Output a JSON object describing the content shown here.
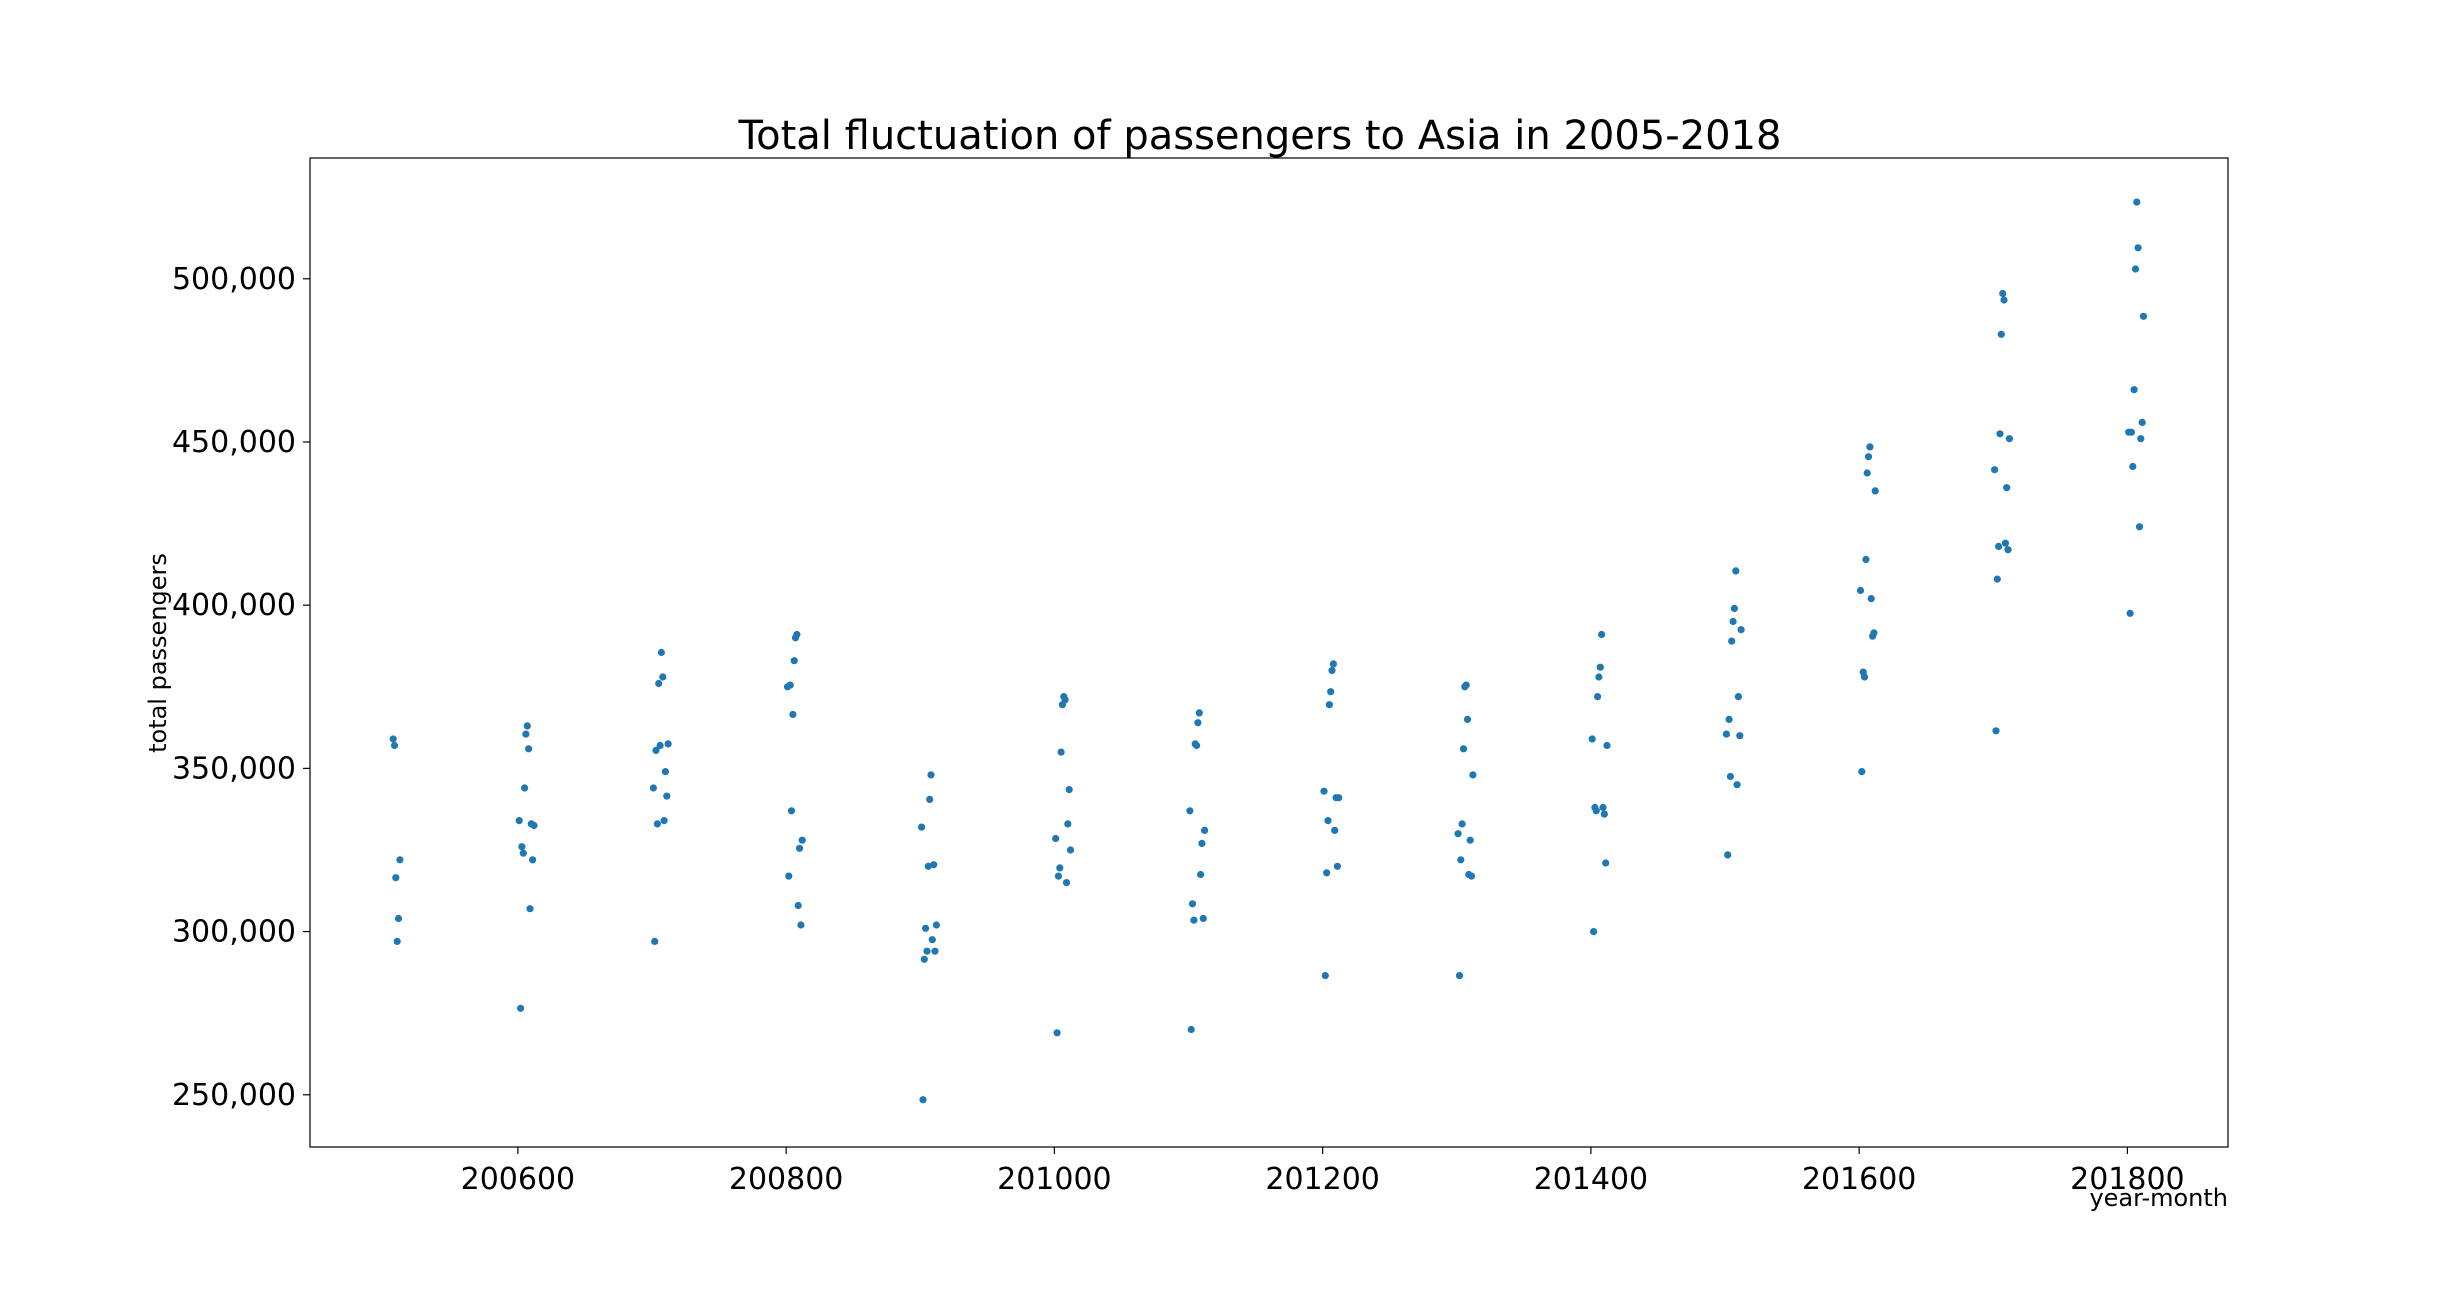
{
  "chart_data": {
    "type": "scatter",
    "title": "Total fluctuation of passengers to Asia in 2005-2018",
    "xlabel": "year-month",
    "ylabel": "total passengers",
    "xlim": [
      200445,
      201875
    ],
    "ylim": [
      234000,
      537000
    ],
    "x_ticks": [
      200600,
      200800,
      201000,
      201200,
      201400,
      201600,
      201800
    ],
    "x_tick_labels": [
      "200600",
      "200800",
      "201000",
      "201200",
      "201400",
      "201600",
      "201800"
    ],
    "y_ticks": [
      250000,
      300000,
      350000,
      400000,
      450000,
      500000
    ],
    "y_tick_labels": [
      "250,000",
      "300,000",
      "350,000",
      "400,000",
      "450,000",
      "500,000"
    ],
    "grid": false,
    "marker_color": "#1f77b4",
    "series": [
      {
        "points": [
          [
            200507,
            359000
          ],
          [
            200508,
            357000
          ],
          [
            200509,
            316500
          ],
          [
            200510,
            297000
          ],
          [
            200511,
            304000
          ],
          [
            200512,
            322000
          ],
          [
            200601,
            334000
          ],
          [
            200602,
            276500
          ],
          [
            200603,
            326000
          ],
          [
            200604,
            324000
          ],
          [
            200605,
            344000
          ],
          [
            200606,
            360500
          ],
          [
            200607,
            363000
          ],
          [
            200608,
            356000
          ],
          [
            200609,
            307000
          ],
          [
            200610,
            333000
          ],
          [
            200611,
            322000
          ],
          [
            200612,
            332500
          ],
          [
            200701,
            344000
          ],
          [
            200702,
            297000
          ],
          [
            200703,
            355500
          ],
          [
            200704,
            333000
          ],
          [
            200705,
            376000
          ],
          [
            200706,
            357000
          ],
          [
            200707,
            385500
          ],
          [
            200708,
            378000
          ],
          [
            200709,
            334000
          ],
          [
            200710,
            349000
          ],
          [
            200711,
            341500
          ],
          [
            200712,
            357500
          ],
          [
            200801,
            375000
          ],
          [
            200802,
            317000
          ],
          [
            200803,
            375500
          ],
          [
            200804,
            337000
          ],
          [
            200805,
            366500
          ],
          [
            200806,
            383000
          ],
          [
            200807,
            390000
          ],
          [
            200808,
            391000
          ],
          [
            200809,
            308000
          ],
          [
            200810,
            325500
          ],
          [
            200811,
            302000
          ],
          [
            200812,
            328000
          ],
          [
            200901,
            332000
          ],
          [
            200902,
            248500
          ],
          [
            200903,
            291500
          ],
          [
            200904,
            301000
          ],
          [
            200905,
            294000
          ],
          [
            200906,
            320000
          ],
          [
            200907,
            340500
          ],
          [
            200908,
            348000
          ],
          [
            200909,
            297500
          ],
          [
            200910,
            320500
          ],
          [
            200911,
            294000
          ],
          [
            200912,
            302000
          ],
          [
            201001,
            328500
          ],
          [
            201002,
            269000
          ],
          [
            201003,
            317000
          ],
          [
            201004,
            319500
          ],
          [
            201005,
            355000
          ],
          [
            201006,
            369500
          ],
          [
            201007,
            372000
          ],
          [
            201008,
            371000
          ],
          [
            201009,
            315000
          ],
          [
            201010,
            333000
          ],
          [
            201011,
            343500
          ],
          [
            201012,
            325000
          ],
          [
            201101,
            337000
          ],
          [
            201102,
            270000
          ],
          [
            201103,
            308500
          ],
          [
            201104,
            303500
          ],
          [
            201105,
            357500
          ],
          [
            201106,
            357000
          ],
          [
            201107,
            364000
          ],
          [
            201108,
            367000
          ],
          [
            201109,
            317500
          ],
          [
            201110,
            327000
          ],
          [
            201111,
            304000
          ],
          [
            201112,
            331000
          ],
          [
            201201,
            343000
          ],
          [
            201202,
            286500
          ],
          [
            201203,
            318000
          ],
          [
            201204,
            334000
          ],
          [
            201205,
            369500
          ],
          [
            201206,
            373500
          ],
          [
            201207,
            380000
          ],
          [
            201208,
            382000
          ],
          [
            201209,
            331000
          ],
          [
            201210,
            341000
          ],
          [
            201211,
            320000
          ],
          [
            201212,
            341000
          ],
          [
            201301,
            330000
          ],
          [
            201302,
            286500
          ],
          [
            201303,
            322000
          ],
          [
            201304,
            333000
          ],
          [
            201305,
            356000
          ],
          [
            201306,
            375000
          ],
          [
            201307,
            375500
          ],
          [
            201308,
            365000
          ],
          [
            201309,
            317500
          ],
          [
            201310,
            328000
          ],
          [
            201311,
            317000
          ],
          [
            201312,
            348000
          ],
          [
            201401,
            359000
          ],
          [
            201402,
            300000
          ],
          [
            201403,
            338000
          ],
          [
            201404,
            337000
          ],
          [
            201405,
            372000
          ],
          [
            201406,
            378000
          ],
          [
            201407,
            381000
          ],
          [
            201408,
            391000
          ],
          [
            201409,
            338000
          ],
          [
            201410,
            336000
          ],
          [
            201411,
            321000
          ],
          [
            201412,
            357000
          ],
          [
            201501,
            360500
          ],
          [
            201502,
            323500
          ],
          [
            201503,
            365000
          ],
          [
            201504,
            347500
          ],
          [
            201505,
            389000
          ],
          [
            201506,
            395000
          ],
          [
            201507,
            399000
          ],
          [
            201508,
            410500
          ],
          [
            201509,
            345000
          ],
          [
            201510,
            372000
          ],
          [
            201511,
            360000
          ],
          [
            201512,
            392500
          ],
          [
            201601,
            404500
          ],
          [
            201602,
            349000
          ],
          [
            201603,
            379500
          ],
          [
            201604,
            378000
          ],
          [
            201605,
            414000
          ],
          [
            201606,
            440500
          ],
          [
            201607,
            445500
          ],
          [
            201608,
            448500
          ],
          [
            201609,
            402000
          ],
          [
            201610,
            390500
          ],
          [
            201611,
            391500
          ],
          [
            201612,
            435000
          ],
          [
            201701,
            441500
          ],
          [
            201702,
            361500
          ],
          [
            201703,
            408000
          ],
          [
            201704,
            418000
          ],
          [
            201705,
            452500
          ],
          [
            201706,
            483000
          ],
          [
            201707,
            495500
          ],
          [
            201708,
            493500
          ],
          [
            201709,
            419000
          ],
          [
            201710,
            436000
          ],
          [
            201711,
            417000
          ],
          [
            201712,
            451000
          ],
          [
            201801,
            453000
          ],
          [
            201802,
            397500
          ],
          [
            201803,
            453000
          ],
          [
            201804,
            442500
          ],
          [
            201805,
            466000
          ],
          [
            201806,
            503000
          ],
          [
            201807,
            523500
          ],
          [
            201808,
            509500
          ],
          [
            201809,
            424000
          ],
          [
            201810,
            451000
          ],
          [
            201811,
            456000
          ],
          [
            201812,
            488500
          ]
        ]
      }
    ]
  }
}
